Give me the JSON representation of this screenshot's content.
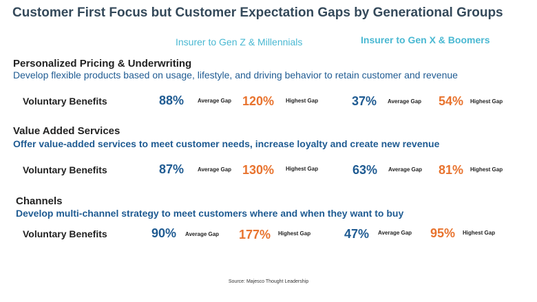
{
  "title": "Customer First Focus but Customer Expectation Gaps by Generational Groups",
  "columns": {
    "genz": "Insurer to Gen Z & Millennials",
    "genx": "Insurer to Gen X & Boomers"
  },
  "tags": {
    "average": "Average Gap",
    "highest": "Highest Gap"
  },
  "sections": [
    {
      "title": "Personalized Pricing & Underwriting",
      "description": "Develop flexible products based on usage, lifestyle, and driving behavior to retain customer and revenue",
      "row": {
        "label": "Voluntary Benefits",
        "genz_avg": "88%",
        "genz_high": "120%",
        "genx_avg": "37%",
        "genx_high": "54%"
      }
    },
    {
      "title": "Value Added Services",
      "description": "Offer value-added services to meet customer needs, increase loyalty and create new revenue",
      "row": {
        "label": "Voluntary Benefits",
        "genz_avg": "87%",
        "genz_high": "130%",
        "genx_avg": "63%",
        "genx_high": "81%"
      }
    },
    {
      "title": "Channels",
      "description": "Develop multi-channel strategy to meet customers where and when they want to buy",
      "row": {
        "label": "Voluntary Benefits",
        "genz_avg": "90%",
        "genz_high": "177%",
        "genx_avg": "47%",
        "genx_high": "95%"
      }
    }
  ],
  "source": "Source: Majesco Thought Leadership",
  "colors": {
    "title": "#34495a",
    "column_header": "#49b8d2",
    "description": "#1f5b92",
    "average_value": "#1f5b92",
    "highest_value": "#e8732e"
  }
}
